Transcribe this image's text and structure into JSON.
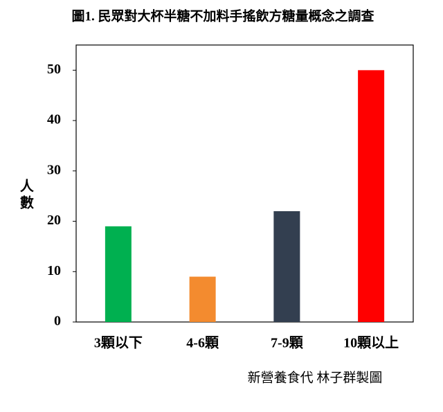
{
  "chart_data": {
    "type": "bar",
    "title": "圖1. 民眾對大杯半糖不加料手搖飲方糖量概念之調查",
    "y_label": "人數",
    "categories": [
      "3顆以下",
      "4-6顆",
      "7-9顆",
      "10顆以上"
    ],
    "values": [
      19,
      9,
      22,
      50
    ],
    "colors": [
      "#00b050",
      "#f38b2f",
      "#333f50",
      "#ff0000"
    ],
    "ylim": [
      0,
      55
    ],
    "yticks": [
      0,
      10,
      20,
      30,
      40,
      50
    ],
    "grid": false,
    "source": "新營養食代 林子群製圖"
  }
}
